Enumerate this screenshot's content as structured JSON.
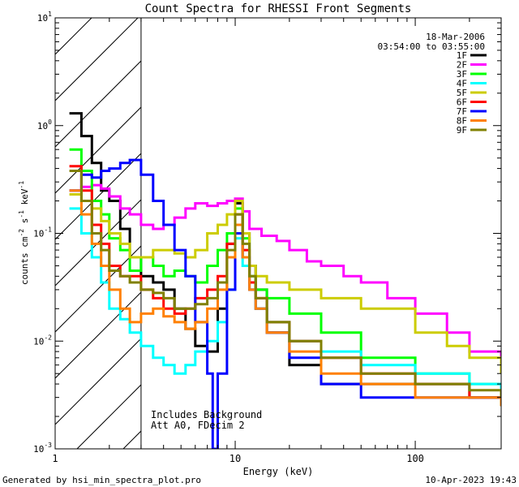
{
  "chart_data": {
    "type": "line",
    "title": "Count Spectra for RHESSI Front Segments",
    "xlabel": "Energy (keV)",
    "ylabel_parts": [
      "counts cm",
      "-2",
      " s",
      "-1",
      " keV",
      "-1"
    ],
    "xscale": "log",
    "yscale": "log",
    "xlim": [
      1,
      300
    ],
    "ylim": [
      0.001,
      10
    ],
    "x_ticks": [
      {
        "value": 1,
        "label": "1"
      },
      {
        "value": 10,
        "label": "10"
      },
      {
        "value": 100,
        "label": "100"
      }
    ],
    "y_ticks": [
      {
        "value": 0.001,
        "base": "10",
        "exp": "-3"
      },
      {
        "value": 0.01,
        "base": "10",
        "exp": "-2"
      },
      {
        "value": 0.1,
        "base": "10",
        "exp": "-1"
      },
      {
        "value": 1,
        "base": "10",
        "exp": "0"
      },
      {
        "value": 10,
        "base": "10",
        "exp": "1"
      }
    ],
    "hatched_region_xlim": [
      1,
      3
    ],
    "header_lines": [
      "18-Mar-2006",
      "03:54:00 to 03:55:00"
    ],
    "annotation_lines": [
      "Includes Background",
      "Att A0, FDecim 2"
    ],
    "series": [
      {
        "name": "1F",
        "color": "#000000",
        "x": [
          1.2,
          1.4,
          1.6,
          1.8,
          2.0,
          2.3,
          2.6,
          3.0,
          3.5,
          4.0,
          4.6,
          5.3,
          6.0,
          7.0,
          8.0,
          9.0,
          10.0,
          11.0,
          12.0,
          13.0,
          15.0,
          20.0,
          30.0,
          50.0,
          100.0,
          200.0,
          300.0
        ],
        "y": [
          1.3,
          0.8,
          0.45,
          0.25,
          0.2,
          0.11,
          0.06,
          0.04,
          0.035,
          0.03,
          0.02,
          0.013,
          0.009,
          0.008,
          0.02,
          0.08,
          0.19,
          0.1,
          0.05,
          0.03,
          0.012,
          0.006,
          0.004,
          0.004,
          0.004,
          0.003,
          0.0025
        ]
      },
      {
        "name": "2F",
        "color": "#ff00ff",
        "x": [
          1.2,
          1.4,
          1.6,
          1.8,
          2.0,
          2.3,
          2.6,
          3.0,
          3.5,
          4.0,
          4.6,
          5.3,
          6.0,
          7.0,
          8.0,
          9.0,
          10.0,
          11.0,
          12.0,
          14.0,
          17.0,
          20.0,
          25.0,
          30.0,
          40.0,
          50.0,
          70.0,
          100.0,
          150.0,
          200.0,
          300.0
        ],
        "y": [
          0.25,
          0.27,
          0.28,
          0.26,
          0.22,
          0.17,
          0.15,
          0.12,
          0.11,
          0.12,
          0.14,
          0.17,
          0.19,
          0.18,
          0.19,
          0.2,
          0.21,
          0.16,
          0.11,
          0.095,
          0.085,
          0.07,
          0.055,
          0.05,
          0.04,
          0.035,
          0.025,
          0.018,
          0.012,
          0.008,
          0.006
        ]
      },
      {
        "name": "3F",
        "color": "#00ff00",
        "x": [
          1.2,
          1.4,
          1.6,
          1.8,
          2.0,
          2.3,
          2.6,
          3.0,
          3.5,
          4.0,
          4.6,
          5.3,
          6.0,
          7.0,
          8.0,
          9.0,
          10.0,
          11.0,
          12.0,
          13.0,
          15.0,
          20.0,
          30.0,
          50.0,
          100.0,
          200.0,
          300.0
        ],
        "y": [
          0.6,
          0.38,
          0.2,
          0.15,
          0.09,
          0.07,
          0.045,
          0.06,
          0.05,
          0.04,
          0.045,
          0.04,
          0.035,
          0.05,
          0.07,
          0.1,
          0.17,
          0.09,
          0.04,
          0.03,
          0.025,
          0.018,
          0.012,
          0.007,
          0.005,
          0.004,
          0.0035
        ]
      },
      {
        "name": "4F",
        "color": "#00ffff",
        "x": [
          1.2,
          1.4,
          1.6,
          1.8,
          2.0,
          2.3,
          2.6,
          3.0,
          3.5,
          4.0,
          4.6,
          5.3,
          6.0,
          7.0,
          8.0,
          9.0,
          10.0,
          11.0,
          12.0,
          13.0,
          15.0,
          20.0,
          30.0,
          50.0,
          100.0,
          200.0,
          300.0
        ],
        "y": [
          0.17,
          0.1,
          0.06,
          0.035,
          0.02,
          0.016,
          0.012,
          0.009,
          0.007,
          0.006,
          0.005,
          0.006,
          0.008,
          0.01,
          0.015,
          0.03,
          0.09,
          0.05,
          0.03,
          0.02,
          0.015,
          0.01,
          0.008,
          0.006,
          0.005,
          0.004,
          0.003
        ]
      },
      {
        "name": "5F",
        "color": "#cccc00",
        "x": [
          1.2,
          1.4,
          1.6,
          1.8,
          2.0,
          2.3,
          2.6,
          3.0,
          3.5,
          4.0,
          4.6,
          5.3,
          6.0,
          7.0,
          8.0,
          9.0,
          10.0,
          11.0,
          12.0,
          13.0,
          15.0,
          20.0,
          30.0,
          50.0,
          100.0,
          150.0,
          200.0,
          300.0
        ],
        "y": [
          0.23,
          0.2,
          0.17,
          0.13,
          0.1,
          0.08,
          0.06,
          0.06,
          0.07,
          0.07,
          0.065,
          0.06,
          0.07,
          0.1,
          0.12,
          0.15,
          0.2,
          0.1,
          0.05,
          0.04,
          0.035,
          0.03,
          0.025,
          0.02,
          0.012,
          0.009,
          0.007,
          0.005
        ]
      },
      {
        "name": "6F",
        "color": "#ff0000",
        "x": [
          1.2,
          1.4,
          1.6,
          1.8,
          2.0,
          2.3,
          2.6,
          3.0,
          3.5,
          4.0,
          4.6,
          5.3,
          6.0,
          7.0,
          8.0,
          9.0,
          10.0,
          11.0,
          12.0,
          13.0,
          15.0,
          20.0,
          30.0,
          50.0,
          100.0,
          200.0,
          300.0
        ],
        "y": [
          0.42,
          0.25,
          0.12,
          0.08,
          0.05,
          0.04,
          0.04,
          0.03,
          0.025,
          0.02,
          0.018,
          0.02,
          0.025,
          0.03,
          0.04,
          0.08,
          0.15,
          0.07,
          0.035,
          0.025,
          0.015,
          0.01,
          0.007,
          0.005,
          0.004,
          0.003,
          0.003
        ]
      },
      {
        "name": "7F",
        "color": "#0000ff",
        "x": [
          1.2,
          1.4,
          1.6,
          1.8,
          2.0,
          2.3,
          2.6,
          3.0,
          3.5,
          4.0,
          4.6,
          5.3,
          6.0,
          7.0,
          7.5,
          8.0,
          9.0,
          10.0,
          11.0,
          12.0,
          13.0,
          15.0,
          20.0,
          30.0,
          50.0,
          100.0,
          200.0,
          300.0
        ],
        "y": [
          0.25,
          0.35,
          0.33,
          0.38,
          0.4,
          0.45,
          0.48,
          0.35,
          0.2,
          0.12,
          0.07,
          0.04,
          0.015,
          0.005,
          0.001,
          0.005,
          0.03,
          0.1,
          0.06,
          0.03,
          0.02,
          0.012,
          0.007,
          0.004,
          0.003,
          0.003,
          0.003,
          0.003
        ]
      },
      {
        "name": "8F",
        "color": "#ff8000",
        "x": [
          1.2,
          1.4,
          1.6,
          1.8,
          2.0,
          2.3,
          2.6,
          3.0,
          3.5,
          4.0,
          4.6,
          5.3,
          6.0,
          7.0,
          8.0,
          9.0,
          10.0,
          11.0,
          12.0,
          13.0,
          15.0,
          20.0,
          30.0,
          50.0,
          100.0,
          200.0,
          300.0
        ],
        "y": [
          0.25,
          0.15,
          0.08,
          0.05,
          0.03,
          0.02,
          0.015,
          0.018,
          0.02,
          0.017,
          0.015,
          0.013,
          0.015,
          0.02,
          0.03,
          0.06,
          0.12,
          0.06,
          0.03,
          0.02,
          0.012,
          0.008,
          0.005,
          0.004,
          0.003,
          0.003,
          0.0025
        ]
      },
      {
        "name": "9F",
        "color": "#808000",
        "x": [
          1.2,
          1.4,
          1.6,
          1.8,
          2.0,
          2.3,
          2.6,
          3.0,
          3.5,
          4.0,
          4.6,
          5.3,
          6.0,
          7.0,
          8.0,
          9.0,
          10.0,
          11.0,
          12.0,
          13.0,
          15.0,
          20.0,
          30.0,
          50.0,
          100.0,
          200.0,
          300.0
        ],
        "y": [
          0.38,
          0.2,
          0.1,
          0.07,
          0.045,
          0.04,
          0.035,
          0.03,
          0.028,
          0.025,
          0.02,
          0.02,
          0.022,
          0.025,
          0.035,
          0.07,
          0.15,
          0.08,
          0.04,
          0.025,
          0.015,
          0.01,
          0.007,
          0.005,
          0.004,
          0.0035,
          0.003
        ]
      }
    ]
  },
  "footer": {
    "generated_by": "Generated by hsi_min_spectra_plot.pro",
    "timestamp": "10-Apr-2023 19:43"
  }
}
